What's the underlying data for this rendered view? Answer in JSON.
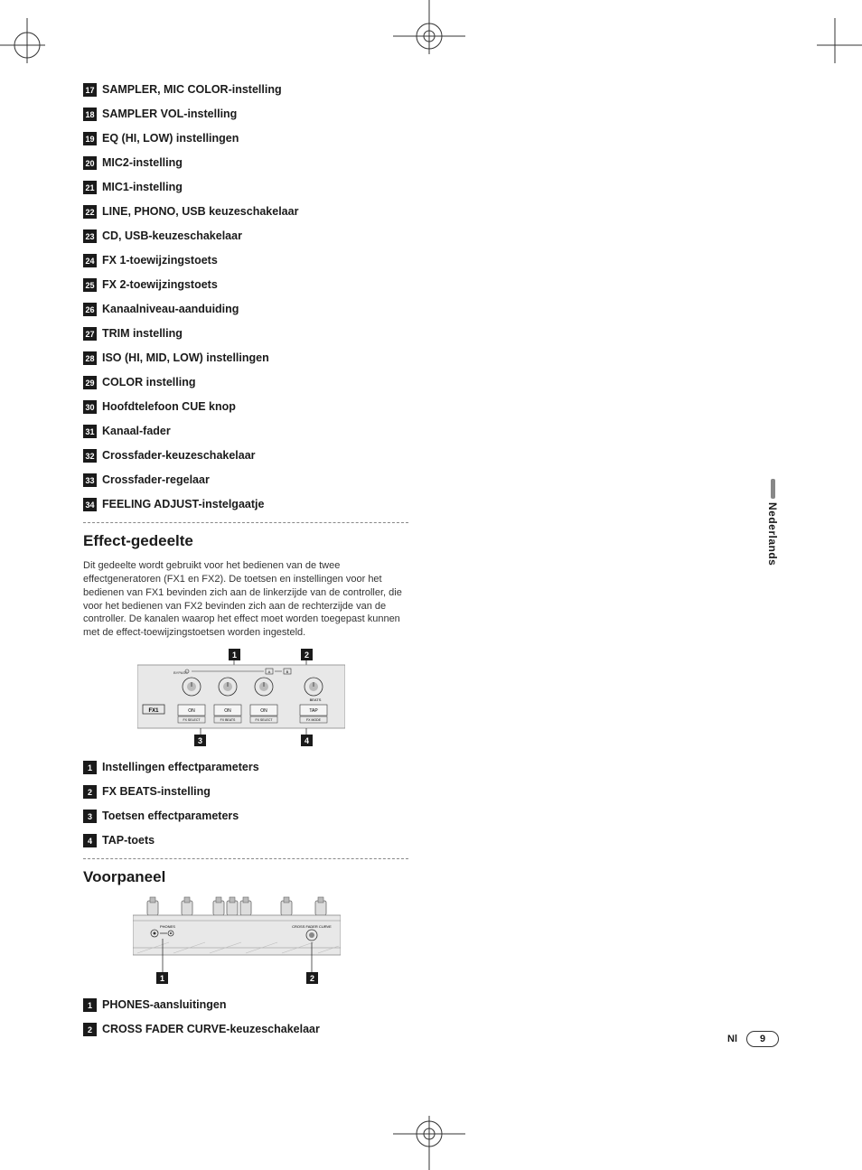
{
  "list1": [
    {
      "n": "17",
      "label": "SAMPLER, MIC COLOR-instelling"
    },
    {
      "n": "18",
      "label": "SAMPLER VOL-instelling"
    },
    {
      "n": "19",
      "label": "EQ (HI, LOW) instellingen"
    },
    {
      "n": "20",
      "label": "MIC2-instelling"
    },
    {
      "n": "21",
      "label": "MIC1-instelling"
    },
    {
      "n": "22",
      "label": "LINE, PHONO, USB keuzeschakelaar"
    },
    {
      "n": "23",
      "label": "CD, USB-keuzeschakelaar"
    },
    {
      "n": "24",
      "label": "FX 1-toewijzingstoets"
    },
    {
      "n": "25",
      "label": "FX 2-toewijzingstoets"
    },
    {
      "n": "26",
      "label": "Kanaalniveau-aanduiding"
    },
    {
      "n": "27",
      "label": "TRIM instelling"
    },
    {
      "n": "28",
      "label": "ISO (HI, MID, LOW) instellingen"
    },
    {
      "n": "29",
      "label": "COLOR instelling"
    },
    {
      "n": "30",
      "label": "Hoofdtelefoon CUE knop"
    },
    {
      "n": "31",
      "label": "Kanaal-fader"
    },
    {
      "n": "32",
      "label": "Crossfader-keuzeschakelaar"
    },
    {
      "n": "33",
      "label": "Crossfader-regelaar"
    },
    {
      "n": "34",
      "label": "FEELING ADJUST-instelgaatje"
    }
  ],
  "section_effect": {
    "title": "Effect-gedeelte",
    "body": "Dit gedeelte wordt gebruikt voor het bedienen van de twee effectgeneratoren (FX1 en FX2). De toetsen en instellingen voor het bedienen van FX1 bevinden zich aan de linkerzijde van de controller, die voor het bedienen van FX2 bevinden zich aan de rechterzijde van de controller. De kanalen waarop het effect moet worden toegepast kunnen met de effect-toewijzingstoetsen worden ingesteld.",
    "diagram": {
      "callouts_top": [
        "1",
        "2"
      ],
      "callouts_bottom": [
        "3",
        "4"
      ],
      "fx_label": "FX1",
      "btn_labels": [
        "ON",
        "ON",
        "ON",
        "TAP"
      ],
      "sub_labels": [
        "FX SELECT",
        "FX BEATS",
        "FX SELECT",
        "FX MODE"
      ],
      "right_label": "BEATS",
      "bypass_labels": [
        "BYPASS",
        "A",
        "B"
      ]
    },
    "items": [
      {
        "n": "1",
        "label": "Instellingen effectparameters"
      },
      {
        "n": "2",
        "label": "FX BEATS-instelling"
      },
      {
        "n": "3",
        "label": "Toetsen effectparameters"
      },
      {
        "n": "4",
        "label": "TAP-toets"
      }
    ]
  },
  "section_front": {
    "title": "Voorpaneel",
    "diagram": {
      "callouts": [
        "1",
        "2"
      ],
      "left_label": "PHONES",
      "right_label": "CROSS FADER CURVE"
    },
    "items": [
      {
        "n": "1",
        "label": "PHONES-aansluitingen"
      },
      {
        "n": "2",
        "label": "CROSS FADER CURVE-keuzeschakelaar"
      }
    ]
  },
  "side_tab": "Nederlands",
  "footer": {
    "lang": "Nl",
    "page": "9"
  }
}
